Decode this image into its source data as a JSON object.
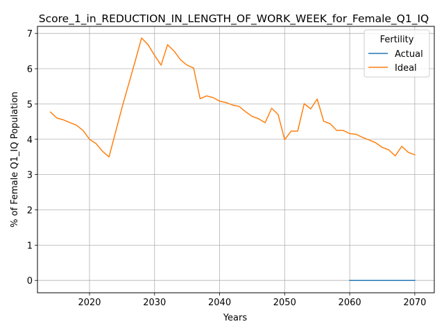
{
  "chart_data": {
    "type": "line",
    "title": "Score_1_in_REDUCTION_IN_LENGTH_OF_WORK_WEEK_for_Female_Q1_IQ",
    "xlabel": "Years",
    "ylabel": "% of Female Q1_IQ Population",
    "xlim": [
      2012,
      2073
    ],
    "ylim": [
      -0.35,
      7.2
    ],
    "x_ticks": [
      2020,
      2030,
      2040,
      2050,
      2060,
      2070
    ],
    "y_ticks": [
      0,
      1,
      2,
      3,
      4,
      5,
      6,
      7
    ],
    "grid": true,
    "legend": {
      "title": "Fertility",
      "placement": "top-right"
    },
    "series": [
      {
        "name": "Actual",
        "color": "#1f77b4",
        "x": [
          2060,
          2061,
          2062,
          2063,
          2064,
          2065,
          2066,
          2067,
          2068,
          2069,
          2070
        ],
        "y": [
          0,
          0,
          0,
          0,
          0,
          0,
          0,
          0,
          0,
          0,
          0
        ]
      },
      {
        "name": "Ideal",
        "color": "#ff7f0e",
        "x": [
          2014,
          2015,
          2016,
          2017,
          2018,
          2019,
          2020,
          2021,
          2022,
          2023,
          2024,
          2025,
          2026,
          2027,
          2028,
          2029,
          2030,
          2031,
          2032,
          2033,
          2034,
          2035,
          2036,
          2037,
          2038,
          2039,
          2040,
          2041,
          2042,
          2043,
          2044,
          2045,
          2046,
          2047,
          2048,
          2049,
          2050,
          2051,
          2052,
          2053,
          2054,
          2055,
          2056,
          2057,
          2058,
          2059,
          2060,
          2061,
          2062,
          2063,
          2064,
          2065,
          2066,
          2067,
          2068,
          2069,
          2070
        ],
        "y": [
          4.77,
          4.6,
          4.55,
          4.47,
          4.4,
          4.25,
          4.0,
          3.88,
          3.66,
          3.5,
          4.2,
          4.9,
          5.55,
          6.2,
          6.87,
          6.68,
          6.38,
          6.1,
          6.68,
          6.5,
          6.25,
          6.1,
          6.02,
          5.15,
          5.23,
          5.18,
          5.08,
          5.04,
          4.97,
          4.93,
          4.78,
          4.65,
          4.58,
          4.47,
          4.88,
          4.7,
          3.99,
          4.23,
          4.23,
          5.01,
          4.86,
          5.14,
          4.51,
          4.44,
          4.25,
          4.25,
          4.16,
          4.14,
          4.05,
          3.98,
          3.9,
          3.77,
          3.7,
          3.53,
          3.8,
          3.63,
          3.56
        ]
      }
    ]
  }
}
